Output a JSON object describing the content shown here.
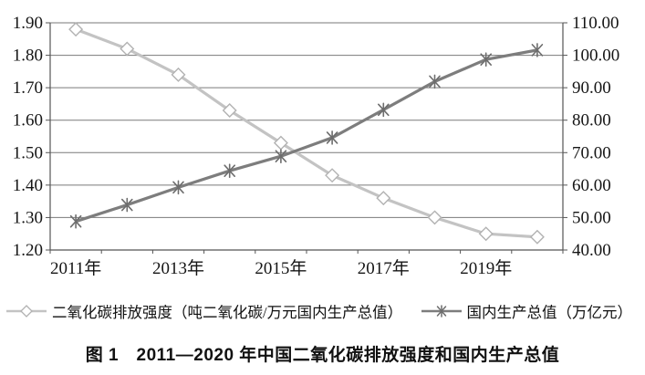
{
  "figure": {
    "caption": "图 1　2011—2020 年中国二氧化碳排放强度和国内生产总值"
  },
  "chart_data": {
    "type": "line",
    "categories": [
      "2011年",
      "2012年",
      "2013年",
      "2014年",
      "2015年",
      "2016年",
      "2017年",
      "2018年",
      "2019年",
      "2020年"
    ],
    "x_ticks": [
      {
        "index": 0,
        "label": "2011年"
      },
      {
        "index": 2,
        "label": "2013年"
      },
      {
        "index": 4,
        "label": "2015年"
      },
      {
        "index": 6,
        "label": "2017年"
      },
      {
        "index": 8,
        "label": "2019年"
      }
    ],
    "series": [
      {
        "id": "co2-intensity",
        "name": "二氧化碳排放强度（吨二氧化碳/万元国内生产总值）",
        "axis": "left",
        "marker": "diamond",
        "color": "#c3c3c3",
        "marker_color": "#b2b2b2",
        "values": [
          1.88,
          1.82,
          1.74,
          1.63,
          1.53,
          1.43,
          1.36,
          1.3,
          1.25,
          1.24
        ]
      },
      {
        "id": "gdp",
        "name": "国内生产总值（万亿元）",
        "axis": "right",
        "marker": "asterisk",
        "color": "#7d7d7d",
        "marker_color": "#6d6d6d",
        "values": [
          48.8,
          53.9,
          59.3,
          64.4,
          68.9,
          74.6,
          83.2,
          91.9,
          98.7,
          101.6
        ]
      }
    ],
    "left_axis": {
      "min": 1.2,
      "max": 1.9,
      "step": 0.1,
      "tick_labels": [
        "1.20",
        "1.30",
        "1.40",
        "1.50",
        "1.60",
        "1.70",
        "1.80",
        "1.90"
      ]
    },
    "right_axis": {
      "min": 40,
      "max": 110,
      "step": 10,
      "tick_labels": [
        "40.00",
        "50.00",
        "60.00",
        "70.00",
        "80.00",
        "90.00",
        "100.00",
        "110.00"
      ]
    },
    "grid": true,
    "legend_position": "bottom",
    "colors": {
      "grid": "#7a7a7a",
      "axis": "#555555",
      "text": "#151515",
      "background": "#ffffff"
    }
  }
}
